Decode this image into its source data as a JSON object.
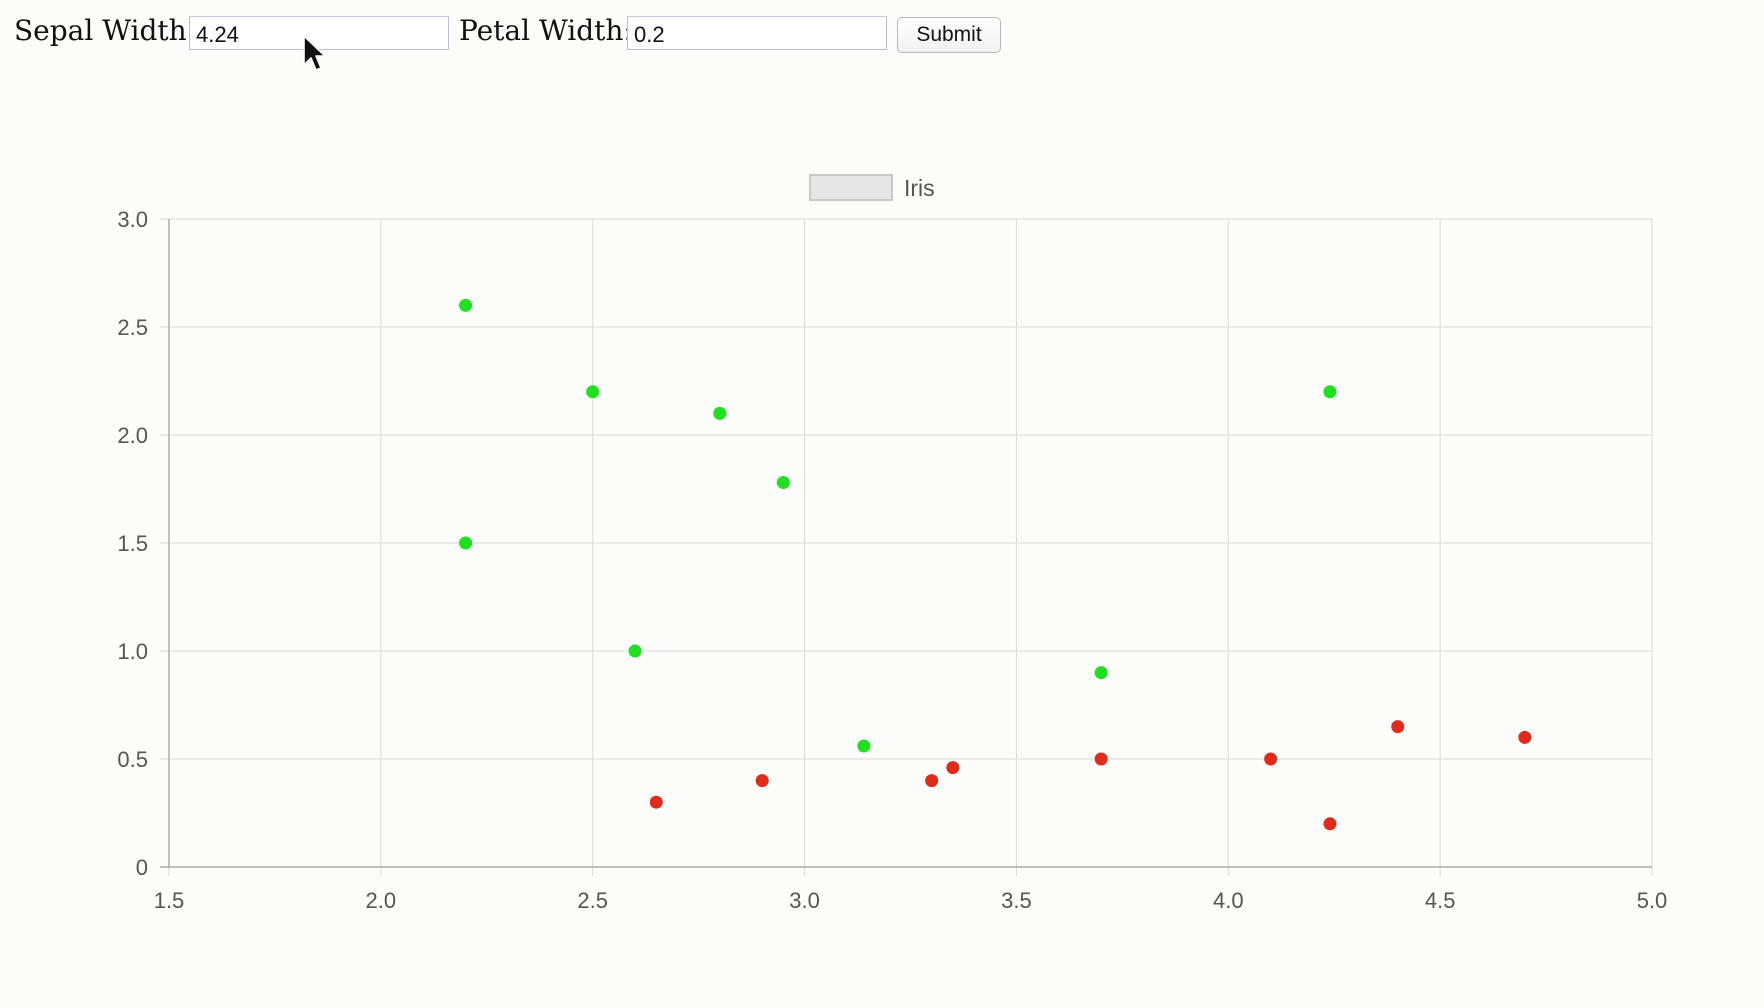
{
  "form": {
    "sepal_width_label": "Sepal Width:",
    "sepal_width_value": "4.24",
    "petal_width_label": "Petal Width:",
    "petal_width_value": "0.2",
    "submit_label": "Submit"
  },
  "chart_data": {
    "type": "scatter",
    "title": "",
    "xlabel": "",
    "ylabel": "",
    "xlim": [
      1.5,
      5.0
    ],
    "ylim": [
      0,
      3.0
    ],
    "x_ticks": [
      1.5,
      2.0,
      2.5,
      3.0,
      3.5,
      4.0,
      4.5,
      5.0
    ],
    "x_tick_labels": [
      "1.5",
      "2.0",
      "2.5",
      "3.0",
      "3.5",
      "4.0",
      "4.5",
      "5.0"
    ],
    "y_ticks": [
      0,
      0.5,
      1.0,
      1.5,
      2.0,
      2.5,
      3.0
    ],
    "y_tick_labels": [
      "0",
      "0.5",
      "1.0",
      "1.5",
      "2.0",
      "2.5",
      "3.0"
    ],
    "grid": true,
    "legend": {
      "position": "top",
      "label": "Iris"
    },
    "series": [
      {
        "name": "Iris",
        "points": [
          {
            "x": 2.2,
            "y": 2.6,
            "color": "#1ee01e"
          },
          {
            "x": 2.5,
            "y": 2.2,
            "color": "#1ee01e"
          },
          {
            "x": 2.8,
            "y": 2.1,
            "color": "#1ee01e"
          },
          {
            "x": 2.95,
            "y": 1.78,
            "color": "#1ee01e"
          },
          {
            "x": 2.2,
            "y": 1.5,
            "color": "#1ee01e"
          },
          {
            "x": 2.6,
            "y": 1.0,
            "color": "#1ee01e"
          },
          {
            "x": 3.14,
            "y": 0.56,
            "color": "#1ee01e"
          },
          {
            "x": 3.7,
            "y": 0.9,
            "color": "#1ee01e"
          },
          {
            "x": 4.24,
            "y": 2.2,
            "color": "#1ee01e"
          },
          {
            "x": 2.65,
            "y": 0.3,
            "color": "#e02a1a"
          },
          {
            "x": 2.9,
            "y": 0.4,
            "color": "#e02a1a"
          },
          {
            "x": 3.3,
            "y": 0.4,
            "color": "#e02a1a"
          },
          {
            "x": 3.35,
            "y": 0.46,
            "color": "#e02a1a"
          },
          {
            "x": 3.7,
            "y": 0.5,
            "color": "#e02a1a"
          },
          {
            "x": 4.1,
            "y": 0.5,
            "color": "#e02a1a"
          },
          {
            "x": 4.24,
            "y": 0.2,
            "color": "#e02a1a"
          },
          {
            "x": 4.4,
            "y": 0.65,
            "color": "#e02a1a"
          },
          {
            "x": 4.7,
            "y": 0.6,
            "color": "#e02a1a"
          }
        ]
      }
    ]
  },
  "colors": {
    "grid": "#dadada",
    "axis": "#9a9a9a",
    "legend_box_fill": "#e6e6e6",
    "legend_box_stroke": "#c8c8c8"
  }
}
